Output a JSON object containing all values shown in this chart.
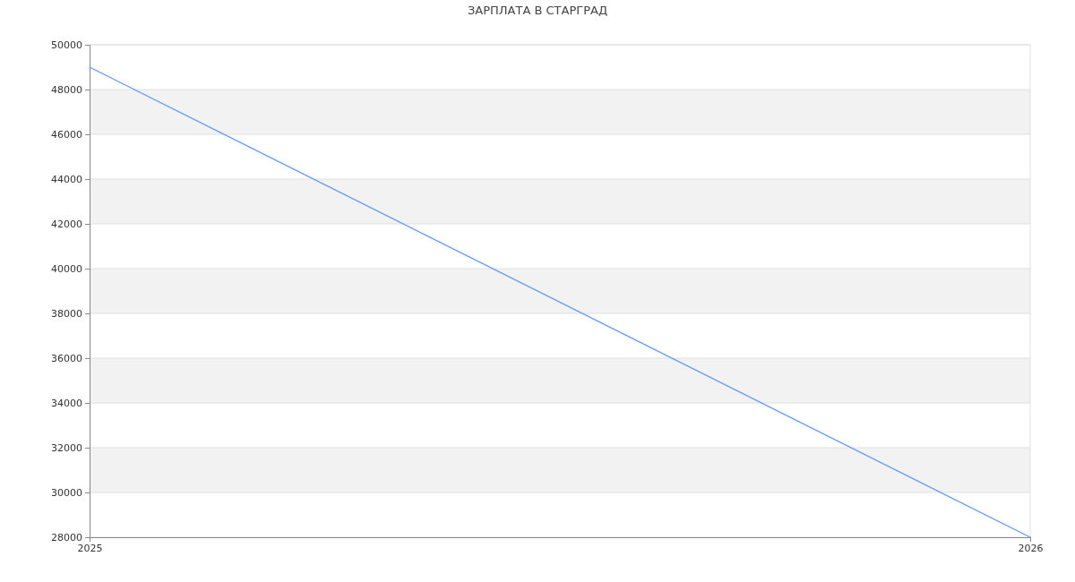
{
  "chart_data": {
    "type": "line",
    "title": "ЗАРПЛАТА В СТАРГРАД",
    "x": [
      2025,
      2026
    ],
    "series": [
      {
        "color": "#6699ee",
        "values": [
          49000,
          28000
        ]
      }
    ],
    "xlim": [
      2025,
      2026
    ],
    "xticks": [
      2025,
      2026
    ],
    "ylim": [
      28000,
      50000
    ],
    "yticks": [
      28000,
      30000,
      32000,
      34000,
      36000,
      38000,
      40000,
      42000,
      44000,
      46000,
      48000,
      50000
    ],
    "grid": "y",
    "marker": "none",
    "line_style": "solid"
  }
}
